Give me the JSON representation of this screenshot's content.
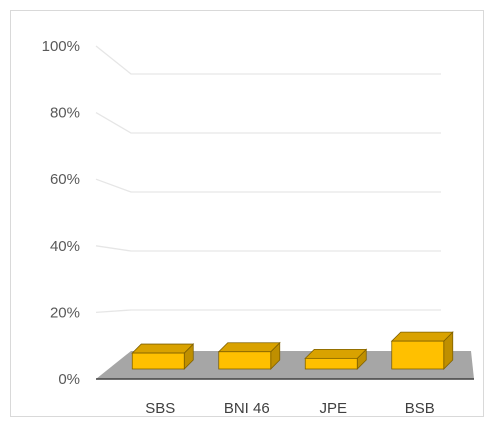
{
  "chart_data": {
    "type": "bar",
    "style": "3d-clustered-column",
    "categories": [
      "SBS",
      "BNI 46",
      "JPE",
      "BSB"
    ],
    "series": [
      {
        "values": [
          0.06,
          0.065,
          0.04,
          0.105
        ]
      }
    ],
    "ylim": [
      0,
      1
    ],
    "yticks": [
      "0%",
      "20%",
      "40%",
      "60%",
      "80%",
      "100%"
    ],
    "title": "",
    "xlabel": "",
    "ylabel": "",
    "grid": true,
    "legend": "none",
    "colors": {
      "bar_front": "#FFC000",
      "bar_top": "#D9A200",
      "bar_side": "#BF8F00",
      "bar_edge": "#7F6000",
      "floor": "#A6A6A6",
      "axis": "#404040",
      "gridline": "#E6E6E6"
    }
  }
}
